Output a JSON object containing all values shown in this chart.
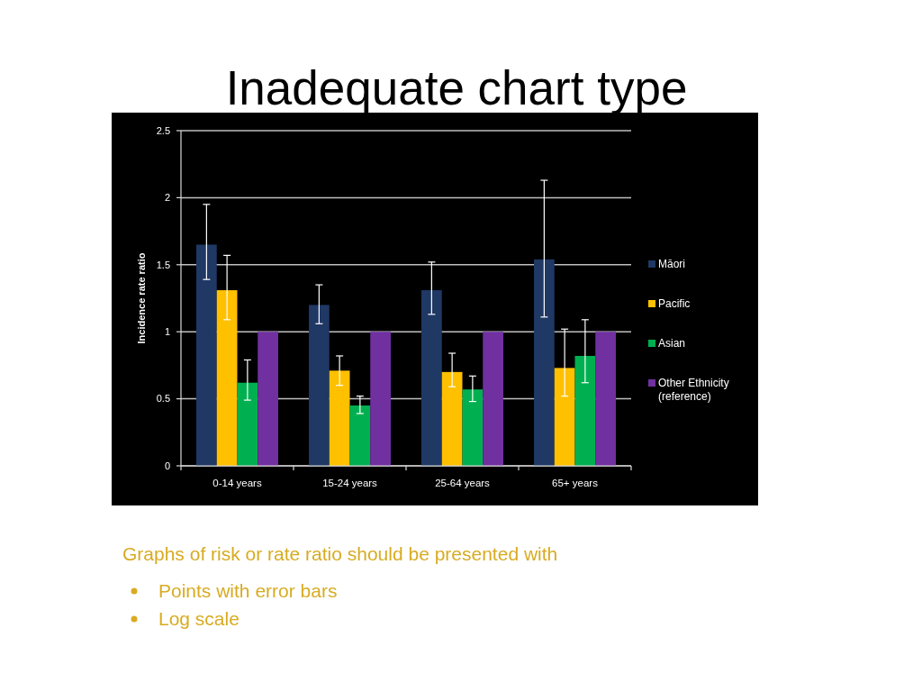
{
  "chart_data": {
    "type": "bar",
    "title": "Inadequate chart type",
    "ylabel": "Incidence rate ratio",
    "categories": [
      "0-14 years",
      "15-24 years",
      "25-64 years",
      "65+ years"
    ],
    "series": [
      {
        "name": "Māori",
        "color": "#1f3864",
        "values": [
          1.65,
          1.2,
          1.31,
          1.54
        ],
        "errors": [
          [
            1.39,
            1.95
          ],
          [
            1.06,
            1.35
          ],
          [
            1.13,
            1.52
          ],
          [
            1.11,
            2.13
          ]
        ]
      },
      {
        "name": "Pacific",
        "color": "#ffc000",
        "values": [
          1.31,
          0.71,
          0.7,
          0.73
        ],
        "errors": [
          [
            1.09,
            1.57
          ],
          [
            0.6,
            0.82
          ],
          [
            0.59,
            0.84
          ],
          [
            0.52,
            1.02
          ]
        ]
      },
      {
        "name": "Asian",
        "color": "#00b050",
        "values": [
          0.62,
          0.45,
          0.57,
          0.82
        ],
        "errors": [
          [
            0.49,
            0.79
          ],
          [
            0.39,
            0.52
          ],
          [
            0.48,
            0.67
          ],
          [
            0.62,
            1.09
          ]
        ]
      },
      {
        "name": "Other Ethnicity (reference)",
        "color": "#7030a0",
        "values": [
          1,
          1,
          1,
          1
        ]
      }
    ],
    "ylim": [
      0,
      2.5
    ],
    "yticks": [
      0,
      0.5,
      1,
      1.5,
      2,
      2.5
    ],
    "grid": "y",
    "legend": "right",
    "annotations": [
      "Graphs of risk or rate ratio should be presented with",
      "Points with error bars",
      "Log scale"
    ]
  }
}
